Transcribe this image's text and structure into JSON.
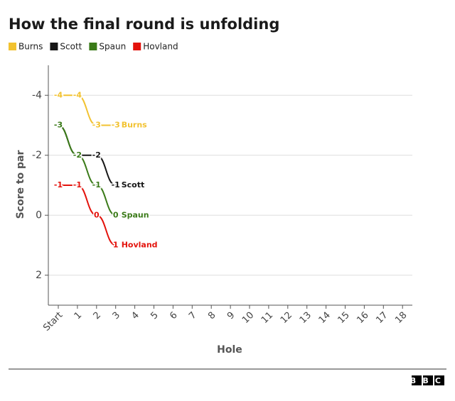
{
  "chart_data": {
    "type": "line",
    "title": "How the final round is unfolding",
    "xlabel": "Hole",
    "ylabel": "Score to par",
    "categories": [
      "Start",
      "1",
      "2",
      "3",
      "4",
      "5",
      "6",
      "7",
      "8",
      "9",
      "10",
      "11",
      "12",
      "13",
      "14",
      "15",
      "16",
      "17",
      "18"
    ],
    "series": [
      {
        "name": "Burns",
        "color": "#f2c230",
        "values": [
          -4,
          -4,
          -3,
          -3,
          null,
          null,
          null,
          null,
          null,
          null,
          null,
          null,
          null,
          null,
          null,
          null,
          null,
          null,
          null
        ]
      },
      {
        "name": "Scott",
        "color": "#161616",
        "values": [
          -3,
          -2,
          -2,
          -1,
          null,
          null,
          null,
          null,
          null,
          null,
          null,
          null,
          null,
          null,
          null,
          null,
          null,
          null,
          null
        ]
      },
      {
        "name": "Spaun",
        "color": "#3a7a18",
        "values": [
          -3,
          -2,
          -1,
          0,
          null,
          null,
          null,
          null,
          null,
          null,
          null,
          null,
          null,
          null,
          null,
          null,
          null,
          null,
          null
        ]
      },
      {
        "name": "Hovland",
        "color": "#e3120b",
        "values": [
          -1,
          -1,
          0,
          1,
          null,
          null,
          null,
          null,
          null,
          null,
          null,
          null,
          null,
          null,
          null,
          null,
          null,
          null,
          null
        ]
      }
    ],
    "ylim": [
      -5,
      3
    ],
    "yinvert": true,
    "yticks": [
      -4,
      -2,
      0,
      2
    ],
    "grid": true,
    "legend": "top-left",
    "logo": "BBC"
  }
}
